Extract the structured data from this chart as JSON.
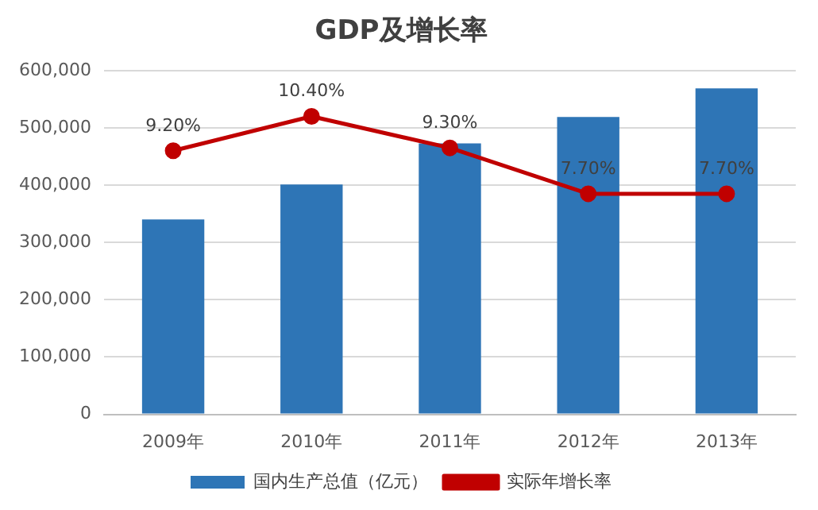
{
  "chart_data": {
    "type": "bar",
    "title": "GDP及增长率",
    "categories": [
      "2009年",
      "2010年",
      "2011年",
      "2012年",
      "2013年"
    ],
    "series": [
      {
        "name": "国内生产总值（亿元）",
        "color": "#2e75b6",
        "values": [
          340000,
          401000,
          473000,
          519000,
          569000
        ]
      },
      {
        "name": "实际年增长率",
        "type": "line",
        "axis": "y2",
        "color": "#c00000",
        "values": [
          9.2,
          10.4,
          9.3,
          7.7,
          7.7
        ],
        "value_labels": [
          "9.20%",
          "10.40%",
          "9.30%",
          "7.70%",
          "7.70%"
        ]
      }
    ],
    "ylim": [
      0,
      600000
    ],
    "yticks": [
      {
        "value": 0,
        "label": "0"
      },
      {
        "value": 100000,
        "label": "100,000"
      },
      {
        "value": 200000,
        "label": "200,000"
      },
      {
        "value": 300000,
        "label": "300,000"
      },
      {
        "value": 400000,
        "label": "400,000"
      },
      {
        "value": 500000,
        "label": "500,000"
      },
      {
        "value": 600000,
        "label": "600,000"
      }
    ],
    "y2lim": [
      0,
      12
    ],
    "grid": "y",
    "legend": "bottom",
    "marker": "circle",
    "line_style": "solid"
  }
}
